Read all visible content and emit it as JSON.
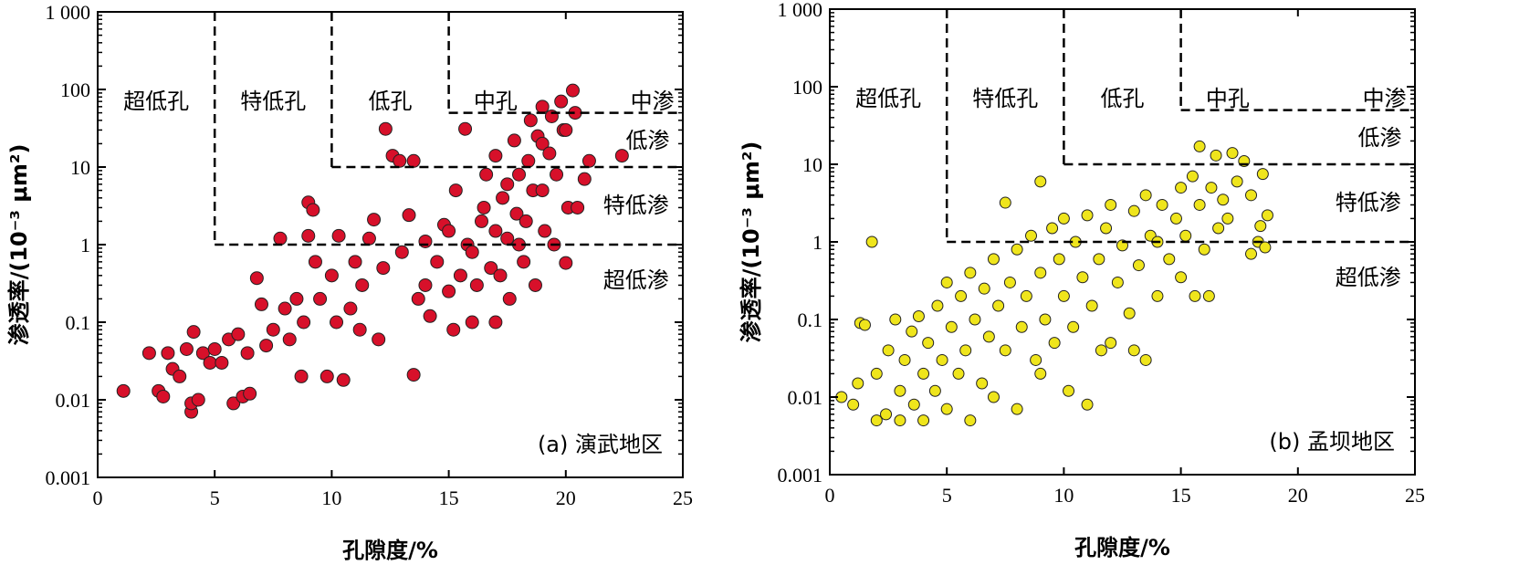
{
  "chart_data": [
    {
      "type": "scatter",
      "panel_label": "(a) 演武地区",
      "xlabel": "孔隙度/%",
      "ylabel": "渗透率/(10⁻³ μm²)",
      "xlim": [
        0,
        25
      ],
      "ylim": [
        0.001,
        1000
      ],
      "yscale": "log",
      "xticks": [
        "0",
        "5",
        "10",
        "15",
        "20",
        "25"
      ],
      "yticks": [
        "1 000",
        "100",
        "10",
        "1",
        "0.1",
        "0.01",
        "0.001"
      ],
      "marker_color": "#d7102a",
      "zones": {
        "porosity": [
          "超低孔",
          "特低孔",
          "低孔",
          "中孔"
        ],
        "permeability": [
          "中渗",
          "低渗",
          "特低渗",
          "超低渗"
        ]
      },
      "boundaries": {
        "porosity": [
          5,
          10,
          15
        ],
        "permeability": [
          1,
          10,
          50
        ]
      },
      "points": [
        [
          1.1,
          0.013
        ],
        [
          2.2,
          0.04
        ],
        [
          2.6,
          0.013
        ],
        [
          2.8,
          0.011
        ],
        [
          3,
          0.04
        ],
        [
          3.2,
          0.025
        ],
        [
          3.5,
          0.02
        ],
        [
          3.8,
          0.045
        ],
        [
          4,
          0.007
        ],
        [
          4,
          0.009
        ],
        [
          4.1,
          0.075
        ],
        [
          4.3,
          0.01
        ],
        [
          4.5,
          0.04
        ],
        [
          4.8,
          0.03
        ],
        [
          5,
          0.045
        ],
        [
          5.3,
          0.03
        ],
        [
          5.6,
          0.06
        ],
        [
          5.8,
          0.009
        ],
        [
          6.2,
          0.011
        ],
        [
          6.5,
          0.012
        ],
        [
          6,
          0.07
        ],
        [
          6.4,
          0.04
        ],
        [
          6.8,
          0.37
        ],
        [
          7,
          0.17
        ],
        [
          7.2,
          0.05
        ],
        [
          7.5,
          0.08
        ],
        [
          7.8,
          1.2
        ],
        [
          8,
          0.15
        ],
        [
          8.2,
          0.06
        ],
        [
          8.5,
          0.2
        ],
        [
          8.7,
          0.02
        ],
        [
          8.8,
          0.1
        ],
        [
          9,
          1.3
        ],
        [
          9,
          3.5
        ],
        [
          9.2,
          2.8
        ],
        [
          9.3,
          0.6
        ],
        [
          9.5,
          0.2
        ],
        [
          9.8,
          0.02
        ],
        [
          10,
          0.4
        ],
        [
          10.2,
          0.1
        ],
        [
          10.3,
          1.3
        ],
        [
          10.5,
          0.018
        ],
        [
          10.8,
          0.15
        ],
        [
          11,
          0.6
        ],
        [
          11.2,
          0.08
        ],
        [
          11.3,
          0.3
        ],
        [
          11.6,
          1.2
        ],
        [
          11.8,
          2.1
        ],
        [
          12,
          0.06
        ],
        [
          12.2,
          0.5
        ],
        [
          12.3,
          31
        ],
        [
          12.6,
          14
        ],
        [
          12.9,
          12
        ],
        [
          13.5,
          12
        ],
        [
          13.3,
          2.4
        ],
        [
          13,
          0.8
        ],
        [
          13.5,
          0.021
        ],
        [
          13.7,
          0.2
        ],
        [
          14,
          0.3
        ],
        [
          14,
          1.1
        ],
        [
          14.2,
          0.12
        ],
        [
          14.5,
          0.6
        ],
        [
          14.8,
          1.8
        ],
        [
          15,
          0.25
        ],
        [
          15,
          1.5
        ],
        [
          15.2,
          0.08
        ],
        [
          15.3,
          5
        ],
        [
          15.5,
          0.4
        ],
        [
          15.7,
          31
        ],
        [
          15.8,
          1
        ],
        [
          16,
          0.8
        ],
        [
          16,
          0.1
        ],
        [
          16.2,
          0.3
        ],
        [
          16.4,
          2
        ],
        [
          16.5,
          3
        ],
        [
          16.6,
          8
        ],
        [
          16.8,
          0.5
        ],
        [
          17,
          14
        ],
        [
          17,
          0.1
        ],
        [
          17,
          1.5
        ],
        [
          17.2,
          0.4
        ],
        [
          17.3,
          4
        ],
        [
          17.5,
          1.2
        ],
        [
          17.5,
          6
        ],
        [
          17.6,
          0.2
        ],
        [
          17.8,
          22
        ],
        [
          17.9,
          2.5
        ],
        [
          18,
          8
        ],
        [
          18,
          1
        ],
        [
          18.2,
          0.6
        ],
        [
          18.3,
          2
        ],
        [
          18.4,
          12
        ],
        [
          18.5,
          40
        ],
        [
          18.6,
          5
        ],
        [
          18.7,
          0.3
        ],
        [
          18.8,
          25
        ],
        [
          19,
          60
        ],
        [
          19,
          5
        ],
        [
          19,
          20
        ],
        [
          19.1,
          1.5
        ],
        [
          19.3,
          15
        ],
        [
          19.4,
          45
        ],
        [
          19.5,
          1
        ],
        [
          19.6,
          8
        ],
        [
          19.8,
          70
        ],
        [
          19.9,
          30
        ],
        [
          20,
          0.58
        ],
        [
          20,
          30
        ],
        [
          20.1,
          3
        ],
        [
          20.3,
          97
        ],
        [
          20.4,
          50
        ],
        [
          20.5,
          3
        ],
        [
          20.8,
          7
        ],
        [
          21,
          12
        ],
        [
          22.4,
          14
        ]
      ]
    },
    {
      "type": "scatter",
      "panel_label": "(b) 孟坝地区",
      "xlabel": "孔隙度/%",
      "ylabel": "渗透率/(10⁻³ μm²)",
      "xlim": [
        0,
        25
      ],
      "ylim": [
        0.001,
        1000
      ],
      "yscale": "log",
      "xticks": [
        "0",
        "5",
        "10",
        "15",
        "20",
        "25"
      ],
      "yticks": [
        "1 000",
        "100",
        "10",
        "1",
        "0.1",
        "0.01",
        "0.001"
      ],
      "marker_color": "#efe51c",
      "zones": {
        "porosity": [
          "超低孔",
          "特低孔",
          "低孔",
          "中孔"
        ],
        "permeability": [
          "中渗",
          "低渗",
          "特低渗",
          "超低渗"
        ]
      },
      "boundaries": {
        "porosity": [
          5,
          10,
          15
        ],
        "permeability": [
          1,
          10,
          50
        ]
      },
      "points": [
        [
          0.5,
          0.01
        ],
        [
          1,
          0.008
        ],
        [
          1.2,
          0.015
        ],
        [
          1.3,
          0.09
        ],
        [
          1.5,
          0.085
        ],
        [
          1.8,
          1.0
        ],
        [
          2,
          0.005
        ],
        [
          2,
          0.02
        ],
        [
          2.4,
          0.006
        ],
        [
          2.5,
          0.04
        ],
        [
          2.8,
          0.1
        ],
        [
          3,
          0.005
        ],
        [
          3,
          0.012
        ],
        [
          3.2,
          0.03
        ],
        [
          3.5,
          0.07
        ],
        [
          3.6,
          0.008
        ],
        [
          3.8,
          0.11
        ],
        [
          4,
          0.02
        ],
        [
          4,
          0.005
        ],
        [
          4.2,
          0.05
        ],
        [
          4.5,
          0.012
        ],
        [
          4.6,
          0.15
        ],
        [
          4.8,
          0.03
        ],
        [
          5,
          0.3
        ],
        [
          5,
          0.007
        ],
        [
          5.2,
          0.08
        ],
        [
          5.5,
          0.02
        ],
        [
          5.6,
          0.2
        ],
        [
          5.8,
          0.04
        ],
        [
          6,
          0.005
        ],
        [
          6,
          0.4
        ],
        [
          6.2,
          0.1
        ],
        [
          6.5,
          0.015
        ],
        [
          6.6,
          0.25
        ],
        [
          6.8,
          0.06
        ],
        [
          7,
          0.6
        ],
        [
          7,
          0.01
        ],
        [
          7.2,
          0.15
        ],
        [
          7.5,
          3.2
        ],
        [
          7.5,
          0.04
        ],
        [
          7.7,
          0.3
        ],
        [
          8,
          0.007
        ],
        [
          8,
          0.8
        ],
        [
          8.2,
          0.08
        ],
        [
          8.4,
          0.2
        ],
        [
          8.6,
          1.2
        ],
        [
          8.8,
          0.03
        ],
        [
          9,
          6
        ],
        [
          9,
          0.02
        ],
        [
          9,
          0.4
        ],
        [
          9.2,
          0.1
        ],
        [
          9.5,
          1.5
        ],
        [
          9.6,
          0.05
        ],
        [
          9.8,
          0.6
        ],
        [
          10,
          2
        ],
        [
          10,
          0.2
        ],
        [
          10.2,
          0.012
        ],
        [
          10.4,
          0.08
        ],
        [
          10.5,
          1
        ],
        [
          10.8,
          0.35
        ],
        [
          11,
          0.008
        ],
        [
          11,
          2.2
        ],
        [
          11.2,
          0.15
        ],
        [
          11.5,
          0.6
        ],
        [
          11.6,
          0.04
        ],
        [
          11.8,
          1.5
        ],
        [
          12,
          0.05
        ],
        [
          12,
          3
        ],
        [
          12.3,
          0.3
        ],
        [
          12.5,
          0.9
        ],
        [
          12.8,
          0.12
        ],
        [
          13,
          0.04
        ],
        [
          13,
          2.5
        ],
        [
          13.2,
          0.5
        ],
        [
          13.5,
          0.03
        ],
        [
          13.5,
          4
        ],
        [
          13.7,
          1.2
        ],
        [
          14,
          1
        ],
        [
          14,
          0.2
        ],
        [
          14.2,
          3
        ],
        [
          14.5,
          0.6
        ],
        [
          14.8,
          2
        ],
        [
          15,
          5
        ],
        [
          15,
          0.35
        ],
        [
          15.2,
          1.2
        ],
        [
          15.5,
          7
        ],
        [
          15.6,
          0.2
        ],
        [
          15.8,
          17
        ],
        [
          15.8,
          3
        ],
        [
          16,
          0.8
        ],
        [
          16.2,
          0.2
        ],
        [
          16.3,
          5
        ],
        [
          16.5,
          13
        ],
        [
          16.6,
          1.5
        ],
        [
          16.8,
          3.5
        ],
        [
          17,
          2
        ],
        [
          17.2,
          14
        ],
        [
          17.4,
          6
        ],
        [
          17.7,
          11
        ],
        [
          18,
          0.7
        ],
        [
          18,
          4
        ],
        [
          18.3,
          1
        ],
        [
          18.5,
          7.5
        ],
        [
          18.6,
          0.85
        ],
        [
          18.7,
          2.2
        ],
        [
          18.4,
          1.6
        ]
      ]
    }
  ]
}
